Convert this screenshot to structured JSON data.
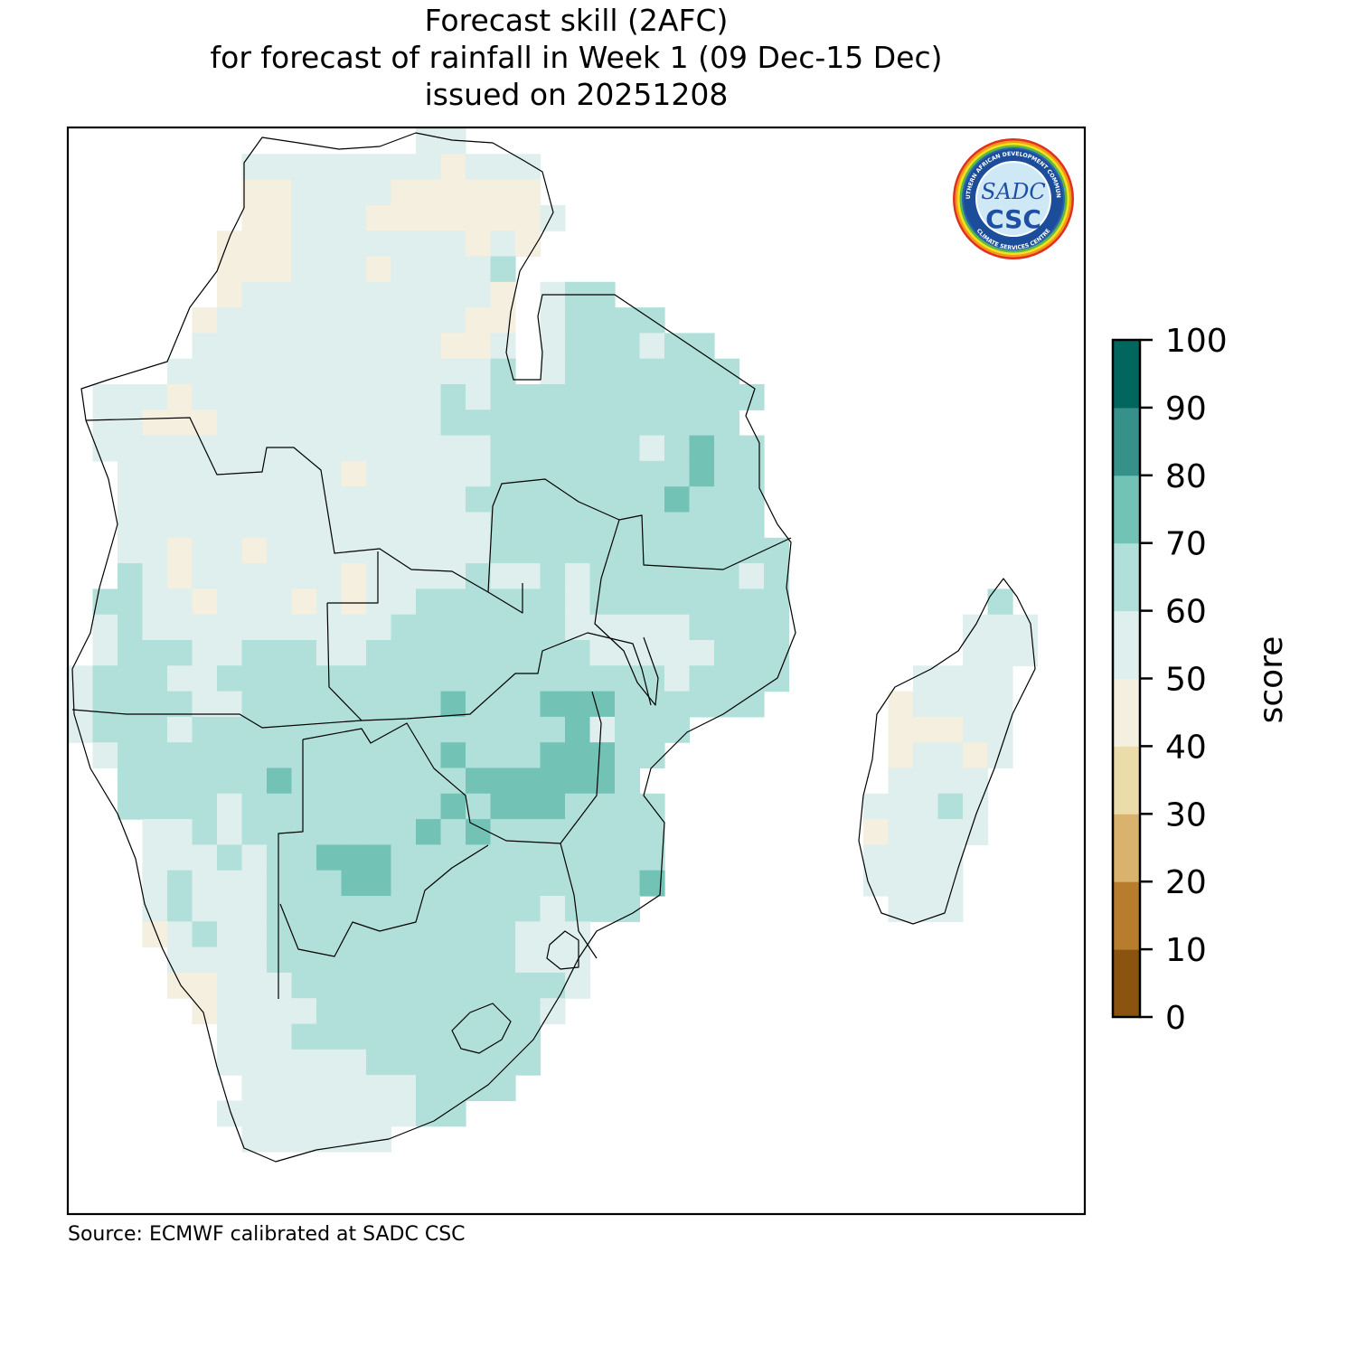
{
  "title": {
    "line1": "Forecast skill (2AFC)",
    "line2": "for forecast of rainfall in Week 1 (09 Dec-15 Dec)",
    "line3": "issued on 20251208"
  },
  "source": "Source: ECMWF calibrated at SADC CSC",
  "logo": {
    "ring_top": "SOUTHERN AFRICAN DEVELOPMENT COMMUNITY",
    "ring_bottom": "CLIMATE SERVICES CENTRE",
    "mark_top": "SADC",
    "mark_bottom": "CSC"
  },
  "colorbar": {
    "label": "score",
    "ticks": [
      0,
      10,
      20,
      30,
      40,
      50,
      60,
      70,
      80,
      90,
      100
    ],
    "colors": [
      "#8a5410",
      "#b77d2c",
      "#d9b26d",
      "#ecdcaa",
      "#f5efe0",
      "#deefed",
      "#b0e0d9",
      "#72c2b6",
      "#36918a",
      "#01665e"
    ]
  },
  "map_data": {
    "grid_key": {
      "b": "40-50",
      "l": "50-60",
      "m": "60-70",
      "d": "70-80",
      ".": "no data"
    },
    "category_colors": {
      "b": "#f5efe0",
      "l": "#deefed",
      "m": "#b0e0d9",
      "d": "#72c2b6"
    },
    "grid_rows_rle": [
      "14. 2l",
      "7. 8l 1b 3l",
      "7. 2b 4l 6b",
      "7. 2b 3l 7b 1l",
      "6. 3b 7l 1b 1l 1b",
      "6. 3b 3l 1b 4l 1m",
      "6. 1b 10l 1b 1. 1l 2m",
      "5. 1b 10l 2b 1. 1l 4m",
      "5. 10l 2b 1l 1. 1l 3m 1l 2m",
      "4. 13l 1m 1. 1l 7m",
      "1. 3l 1b 10l 1m 1l 11m",
      "1. 2l 3b 9l 12m",
      "1. 16l 6m 1l 1m 1d 2m",
      "2. 9l 1b 5l 8m 1d 2m",
      "2. 14l 8m 1d 3m",
      "2. 15l 11m",
      "2. 2l 1b 2l 1b 9l 12m",
      "2. 1m 1l 1b 6l 1b 4l 1m 2l 1m 1l 6m 1l 1m",
      "1. 2m 2l 1b 3l 1b 1l 1b 2l 6m 1l 8m 8. 1m",
      "1. 1l 1m 10l 7m 5l 4m 7. 3l",
      "1. 1l 3m 2l 3m 2l 9m 5l 3m 7. 3l",
      "1l 3m 2l 18m 1l 4m 5. 4l",
      "1l 4m 2l 8m 1d 3m 3d 6m 5. 1b 4l",
      "1l 3m 1l 15m 1d 1l 3m 8. 3b 2l",
      "1. 1l 13m 1d 3m 3d 2m 9. 1b 2l 1b 1l",
      "2. 6m 1d 7m 6d 1m 10. 4l",
      "2. 4m 1l 8m 1d 1m 3d 4m 8. 3l 1m 1l",
      "3. 2l 1m 1l 7m 1d 1m 1d 7m 8. 1b 4l",
      "3. 3l 1m 1l 2m 3d 11m 8. 4l",
      "3. 1l 1m 3l 3m 2d 10m 1d 8. 4l",
      "3. 1l 1m 3l 11m 1l 3m 10. 3l",
      "3. 1b 1l 1m 2l 10m 3l",
      "4. 4l 10m 3l",
      "4. 2b 3l 11m 1l",
      "5. 1b 4l 9m 1l",
      "6. 3l 10m",
      "6. 6l 7m",
      "7. 7l 4m",
      "6. 8l 2m",
      "7. 6l"
    ]
  }
}
